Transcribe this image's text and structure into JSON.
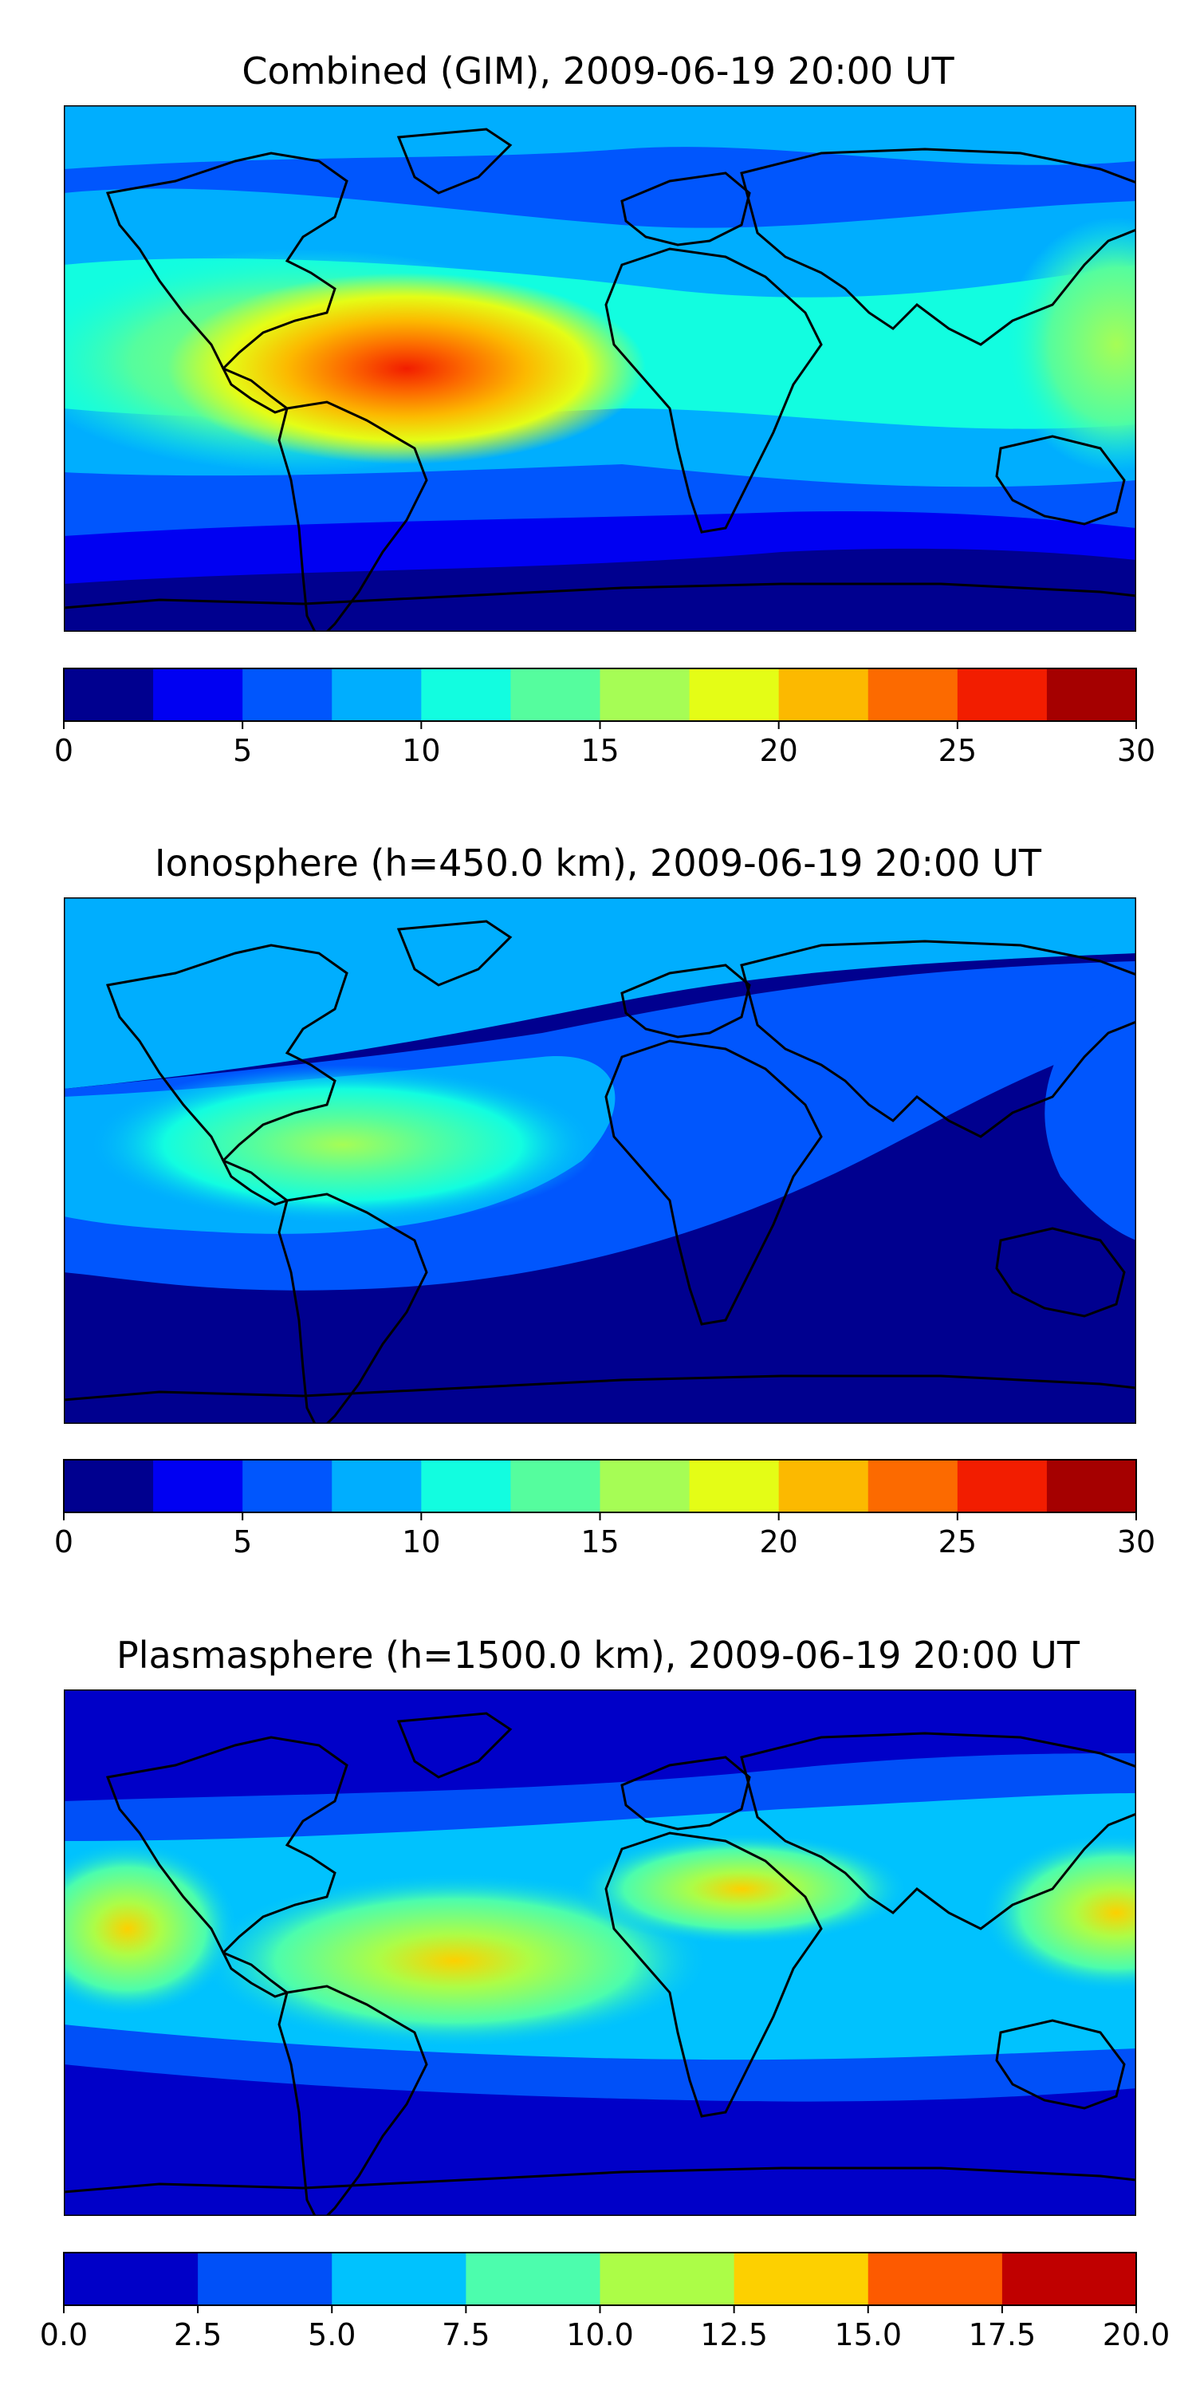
{
  "panels": [
    {
      "title": "Combined (GIM), 2009-06-19 20:00 UT",
      "colorbar": {
        "range": [
          0,
          30
        ],
        "step": 2.5,
        "ticks": [
          "0",
          "5",
          "10",
          "15",
          "20",
          "25",
          "30"
        ],
        "colors": [
          "#00008f",
          "#0000f2",
          "#0056fd",
          "#00aefe",
          "#12fde0",
          "#55fd9e",
          "#a6fd55",
          "#e4fd16",
          "#fcb900",
          "#fc6a00",
          "#f21d00",
          "#a50000"
        ]
      }
    },
    {
      "title": "Ionosphere  (h=450.0 km), 2009-06-19 20:00 UT",
      "colorbar": {
        "range": [
          0,
          30
        ],
        "step": 2.5,
        "ticks": [
          "0",
          "5",
          "10",
          "15",
          "20",
          "25",
          "30"
        ],
        "colors": [
          "#00008f",
          "#0000f2",
          "#0056fd",
          "#00aefe",
          "#12fde0",
          "#55fd9e",
          "#a6fd55",
          "#e4fd16",
          "#fcb900",
          "#fc6a00",
          "#f21d00",
          "#a50000"
        ]
      }
    },
    {
      "title": "Plasmasphere (h=1500.0 km), 2009-06-19 20:00 UT",
      "colorbar": {
        "range": [
          0,
          20
        ],
        "step": 2.5,
        "ticks": [
          "0.0",
          "2.5",
          "5.0",
          "7.5",
          "10.0",
          "12.5",
          "15.0",
          "17.5",
          "20.0"
        ],
        "colors": [
          "#0000c8",
          "#0050f8",
          "#00c2fe",
          "#4cfdad",
          "#acfd47",
          "#fdd000",
          "#fd5a00",
          "#c00000"
        ]
      }
    }
  ]
}
